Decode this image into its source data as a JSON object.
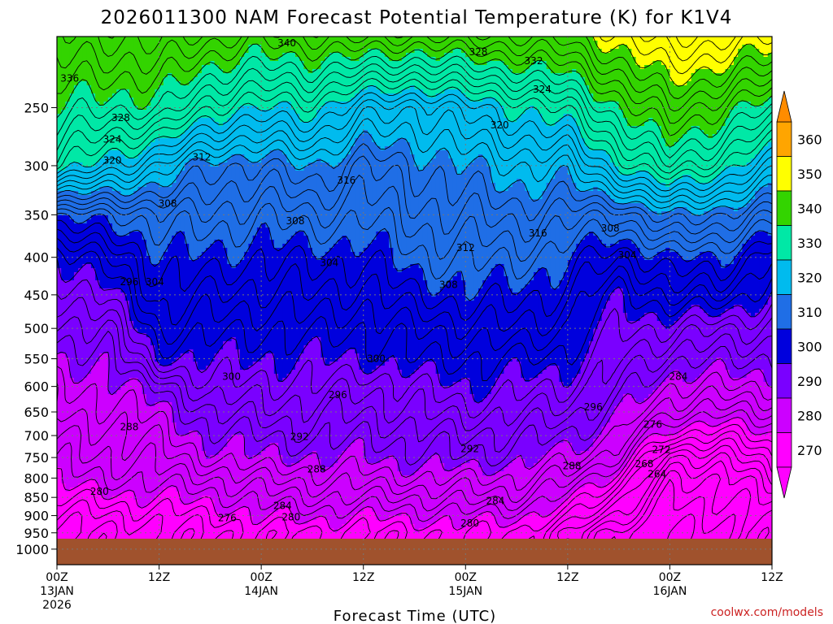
{
  "chart_data": {
    "type": "heatmap",
    "title": "2026011300 NAM Forecast Potential Temperature (K) for K1V4",
    "xlabel": "Forecast Time (UTC)",
    "ylabel": "",
    "credit": "coolwx.com/models",
    "y_ticks": [
      "250",
      "300",
      "350",
      "400",
      "450",
      "500",
      "550",
      "600",
      "650",
      "700",
      "750",
      "800",
      "850",
      "900",
      "950",
      "1000"
    ],
    "y_range": [
      200,
      1050
    ],
    "y_scale": "log-pressure",
    "x_ticks": [
      {
        "label": "00Z",
        "sub1": "13JAN",
        "sub2": "2026",
        "hours": 0
      },
      {
        "label": "12Z",
        "sub1": "",
        "sub2": "",
        "hours": 12
      },
      {
        "label": "00Z",
        "sub1": "14JAN",
        "sub2": "",
        "hours": 24
      },
      {
        "label": "12Z",
        "sub1": "",
        "sub2": "",
        "hours": 36
      },
      {
        "label": "00Z",
        "sub1": "15JAN",
        "sub2": "",
        "hours": 48
      },
      {
        "label": "12Z",
        "sub1": "",
        "sub2": "",
        "hours": 60
      },
      {
        "label": "00Z",
        "sub1": "16JAN",
        "sub2": "",
        "hours": 72
      },
      {
        "label": "12Z",
        "sub1": "",
        "sub2": "",
        "hours": 84
      }
    ],
    "grid": true,
    "colorbar": {
      "levels": [
        "270",
        "280",
        "290",
        "300",
        "310",
        "320",
        "330",
        "340",
        "350",
        "360"
      ],
      "colors": [
        "#ff00ff",
        "#cc00ff",
        "#7a00ff",
        "#0000dd",
        "#1f6ee6",
        "#00bbee",
        "#00e8a6",
        "#33d400",
        "#ffff00",
        "#ffa500"
      ]
    },
    "contour_labels": [
      {
        "value": "340",
        "hours": 27,
        "p": 204
      },
      {
        "value": "328",
        "hours": 49.5,
        "p": 210
      },
      {
        "value": "332",
        "hours": 56,
        "p": 216
      },
      {
        "value": "324",
        "hours": 57,
        "p": 236
      },
      {
        "value": "336",
        "hours": 1.5,
        "p": 228
      },
      {
        "value": "328",
        "hours": 7.5,
        "p": 258
      },
      {
        "value": "324",
        "hours": 6.5,
        "p": 276
      },
      {
        "value": "320",
        "hours": 6.5,
        "p": 295
      },
      {
        "value": "320",
        "hours": 52,
        "p": 264
      },
      {
        "value": "312",
        "hours": 17,
        "p": 292
      },
      {
        "value": "316",
        "hours": 34,
        "p": 314
      },
      {
        "value": "308",
        "hours": 13,
        "p": 338
      },
      {
        "value": "308",
        "hours": 28,
        "p": 357
      },
      {
        "value": "316",
        "hours": 56.5,
        "p": 371
      },
      {
        "value": "308",
        "hours": 65,
        "p": 365
      },
      {
        "value": "312",
        "hours": 48,
        "p": 388
      },
      {
        "value": "304",
        "hours": 67,
        "p": 397
      },
      {
        "value": "304",
        "hours": 32,
        "p": 407
      },
      {
        "value": "308",
        "hours": 46,
        "p": 436
      },
      {
        "value": "296",
        "hours": 8.5,
        "p": 432
      },
      {
        "value": "304",
        "hours": 11.5,
        "p": 432
      },
      {
        "value": "300",
        "hours": 37.5,
        "p": 550
      },
      {
        "value": "300",
        "hours": 20.5,
        "p": 582
      },
      {
        "value": "296",
        "hours": 33,
        "p": 616
      },
      {
        "value": "284",
        "hours": 73,
        "p": 582
      },
      {
        "value": "296",
        "hours": 63,
        "p": 640
      },
      {
        "value": "288",
        "hours": 8.5,
        "p": 681
      },
      {
        "value": "276",
        "hours": 70,
        "p": 676
      },
      {
        "value": "292",
        "hours": 28.5,
        "p": 703
      },
      {
        "value": "292",
        "hours": 48.5,
        "p": 730
      },
      {
        "value": "272",
        "hours": 71,
        "p": 732
      },
      {
        "value": "288",
        "hours": 60.5,
        "p": 770
      },
      {
        "value": "288",
        "hours": 30.5,
        "p": 778
      },
      {
        "value": "268",
        "hours": 69,
        "p": 765
      },
      {
        "value": "264",
        "hours": 70.5,
        "p": 790
      },
      {
        "value": "280",
        "hours": 5,
        "p": 835
      },
      {
        "value": "284",
        "hours": 51.5,
        "p": 859
      },
      {
        "value": "284",
        "hours": 26.5,
        "p": 873
      },
      {
        "value": "280",
        "hours": 27.5,
        "p": 904
      },
      {
        "value": "276",
        "hours": 20,
        "p": 907
      },
      {
        "value": "280",
        "hours": 48.5,
        "p": 922
      }
    ],
    "theta_profile": {
      "note_hours": [
        0,
        6,
        12,
        18,
        24,
        30,
        36,
        42,
        48,
        54,
        60,
        66,
        72,
        78,
        84
      ],
      "p_levels": [
        200,
        250,
        300,
        350,
        400,
        450,
        500,
        550,
        600,
        650,
        700,
        750,
        800,
        850,
        900,
        950
      ],
      "values": [
        [
          346,
          340,
          333,
          310,
          300,
          296,
          293,
          290,
          287,
          286,
          284,
          283,
          281,
          278,
          275,
          273
        ],
        [
          346,
          338,
          328,
          312,
          304,
          299,
          294,
          291,
          289,
          287,
          285,
          284,
          282,
          279,
          276,
          274
        ],
        [
          347,
          339,
          324,
          313,
          309,
          307,
          304,
          300,
          292,
          289,
          287,
          285,
          283,
          280,
          277,
          275
        ],
        [
          345,
          332,
          318,
          314,
          310,
          306,
          303,
          300,
          298,
          294,
          291,
          288,
          284,
          281,
          278,
          276
        ],
        [
          343,
          330,
          318,
          312,
          308,
          305,
          302,
          300,
          297,
          295,
          292,
          290,
          286,
          283,
          280,
          277
        ],
        [
          344,
          331,
          320,
          314,
          309,
          306,
          303,
          300,
          298,
          295,
          293,
          290,
          287,
          284,
          281,
          278
        ],
        [
          345,
          326,
          316,
          312,
          308,
          305,
          302,
          300,
          296,
          294,
          292,
          290,
          287,
          284,
          280,
          277
        ],
        [
          344,
          324,
          318,
          315,
          312,
          308,
          304,
          302,
          298,
          296,
          293,
          291,
          288,
          284,
          281,
          278
        ],
        [
          345,
          327,
          320,
          316,
          312,
          309,
          305,
          302,
          300,
          297,
          294,
          292,
          288,
          285,
          281,
          278
        ],
        [
          346,
          330,
          322,
          317,
          313,
          309,
          306,
          302,
          299,
          296,
          293,
          291,
          288,
          285,
          281,
          278
        ],
        [
          347,
          333,
          322,
          315,
          310,
          307,
          304,
          301,
          298,
          295,
          292,
          289,
          285,
          281,
          277,
          272
        ],
        [
          352,
          340,
          330,
          314,
          306,
          300,
          298,
          296,
          294,
          291,
          288,
          284,
          278,
          273,
          269,
          264
        ],
        [
          356,
          346,
          336,
          320,
          310,
          305,
          298,
          293,
          288,
          284,
          278,
          270,
          266,
          264,
          263,
          262
        ],
        [
          355,
          342,
          332,
          318,
          310,
          304,
          296,
          292,
          288,
          283,
          276,
          270,
          266,
          265,
          264,
          263
        ],
        [
          352,
          338,
          326,
          314,
          304,
          300,
          296,
          292,
          288,
          284,
          280,
          276,
          272,
          269,
          267,
          266
        ]
      ]
    }
  }
}
